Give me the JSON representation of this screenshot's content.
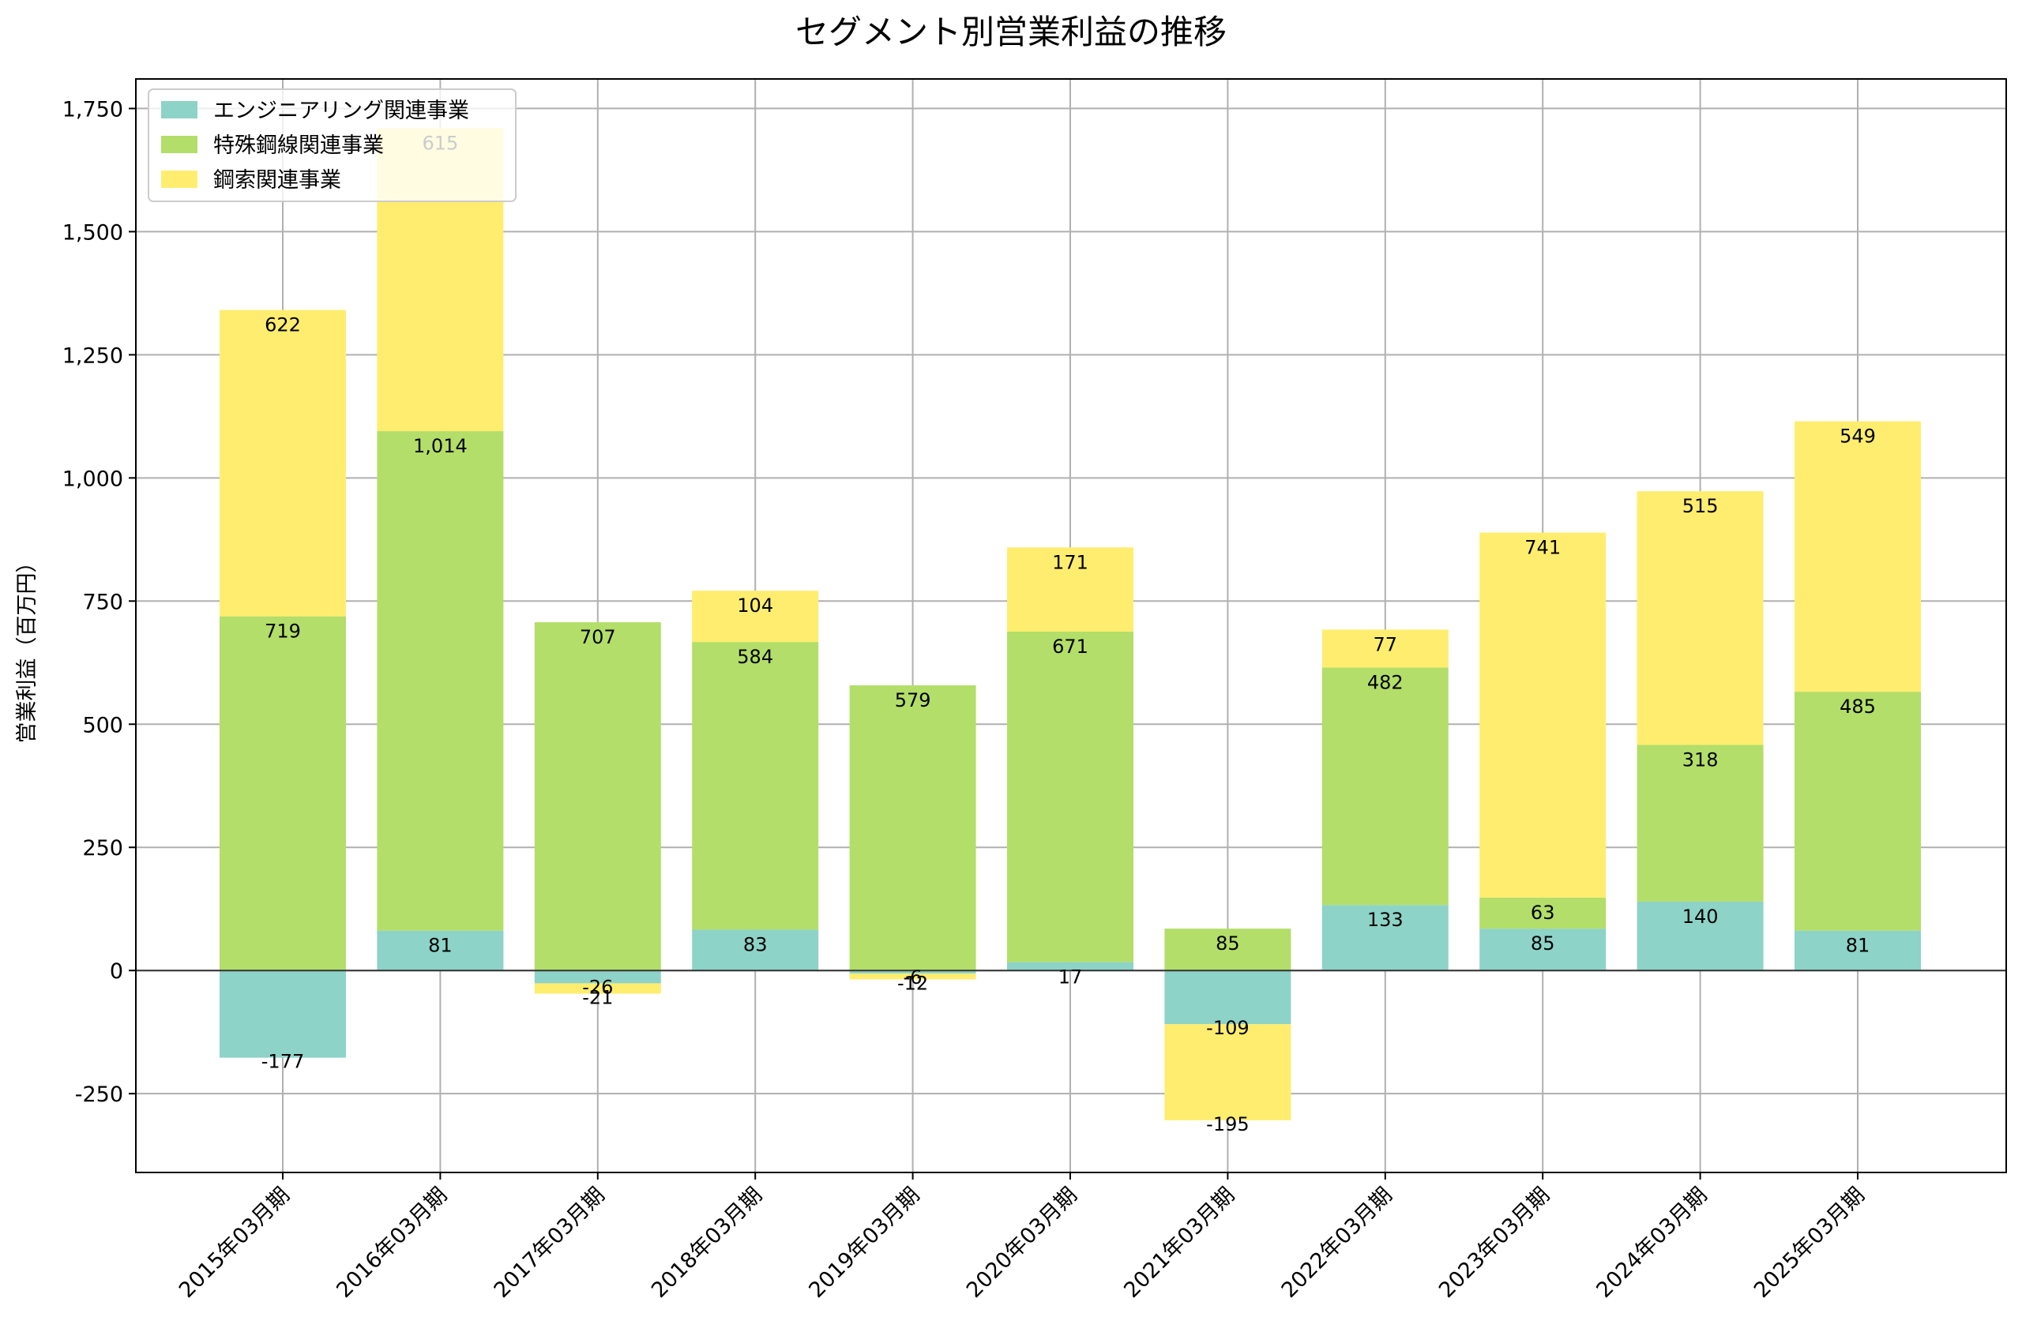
{
  "chart_data": {
    "type": "bar",
    "stacked": true,
    "title": "セグメント別営業利益の推移",
    "xlabel": "",
    "ylabel": "営業利益（百万円）",
    "ylim": [
      -410,
      1810
    ],
    "yticks": [
      -250,
      0,
      250,
      500,
      750,
      1000,
      1250,
      1500,
      1750
    ],
    "ytick_labels": [
      "-250",
      "0",
      "250",
      "500",
      "750",
      "1,000",
      "1,250",
      "1,500",
      "1,750"
    ],
    "grid": true,
    "legend_position": "top-left",
    "categories": [
      "2015年03月期",
      "2016年03月期",
      "2017年03月期",
      "2018年03月期",
      "2019年03月期",
      "2020年03月期",
      "2021年03月期",
      "2022年03月期",
      "2023年03月期",
      "2024年03月期",
      "2025年03月期"
    ],
    "series": [
      {
        "name": "エンジニアリング関連事業",
        "color": "#8dd3c7",
        "values": [
          -177,
          81,
          -26,
          83,
          -6,
          17,
          -109,
          133,
          85,
          140,
          81
        ],
        "labels": [
          "-177",
          "81",
          "-26",
          "83",
          "-6",
          "17",
          "-109",
          "133",
          "85",
          "140",
          "81"
        ]
      },
      {
        "name": "特殊鋼線関連事業",
        "color": "#b3de69",
        "values": [
          719,
          1014,
          707,
          584,
          579,
          671,
          85,
          482,
          63,
          318,
          485
        ],
        "labels": [
          "719",
          "1,014",
          "707",
          "584",
          "579",
          "671",
          "85",
          "482",
          "63",
          "318",
          "485"
        ]
      },
      {
        "name": "鋼索関連事業",
        "color": "#ffed6f",
        "values": [
          622,
          615,
          -21,
          104,
          -12,
          171,
          -195,
          77,
          741,
          515,
          549
        ],
        "labels": [
          "622",
          "615",
          "-21",
          "104",
          "-12",
          "171",
          "-195",
          "77",
          "741",
          "515",
          "549"
        ]
      }
    ]
  }
}
